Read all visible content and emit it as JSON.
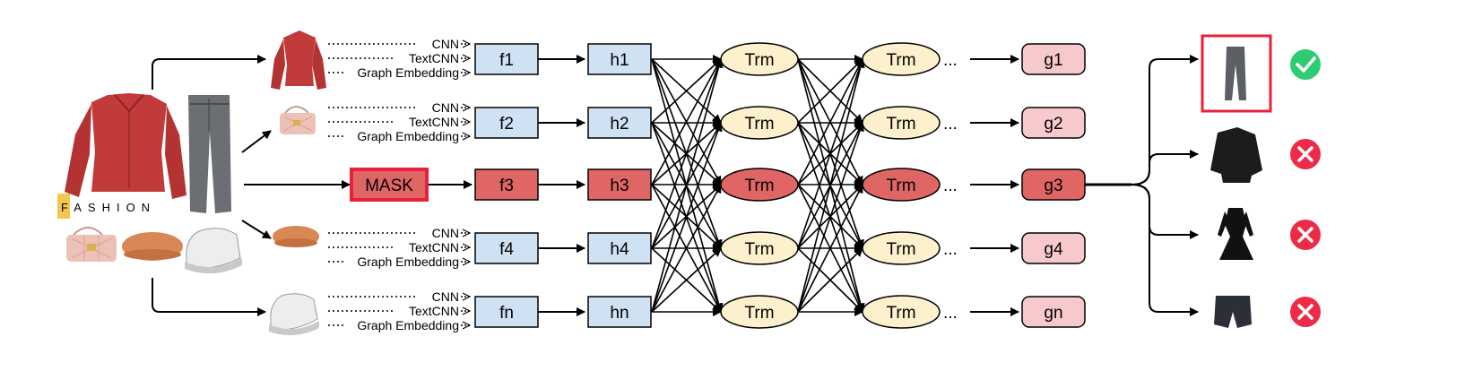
{
  "feature_labels": [
    "CNN",
    "TextCNN",
    "Graph Embedding"
  ],
  "mask_label": "MASK",
  "logo_text": "FASHION",
  "ellipsis": "...",
  "rows": [
    {
      "f": "f1",
      "h": "h1",
      "trm": "Trm",
      "g": "g1",
      "masked": false
    },
    {
      "f": "f2",
      "h": "h2",
      "trm": "Trm",
      "g": "g2",
      "masked": false
    },
    {
      "f": "f3",
      "h": "h3",
      "trm": "Trm",
      "g": "g3",
      "masked": true
    },
    {
      "f": "f4",
      "h": "h4",
      "trm": "Trm",
      "g": "g4",
      "masked": false
    },
    {
      "f": "fn",
      "h": "hn",
      "trm": "Trm",
      "g": "gn",
      "masked": false
    }
  ],
  "candidates": [
    {
      "name": "jeans",
      "correct": true
    },
    {
      "name": "leather-jacket",
      "correct": false
    },
    {
      "name": "black-dress",
      "correct": false
    },
    {
      "name": "shorts",
      "correct": false
    }
  ],
  "colors": {
    "feature_box": "#cfe2f3",
    "masked_box": "#e06666",
    "trm_normal": "#fdf0cc",
    "g_normal": "#f7c9cc",
    "mask_border": "#e8203a",
    "check": "#2ecc71",
    "cross": "#ee2b47"
  }
}
